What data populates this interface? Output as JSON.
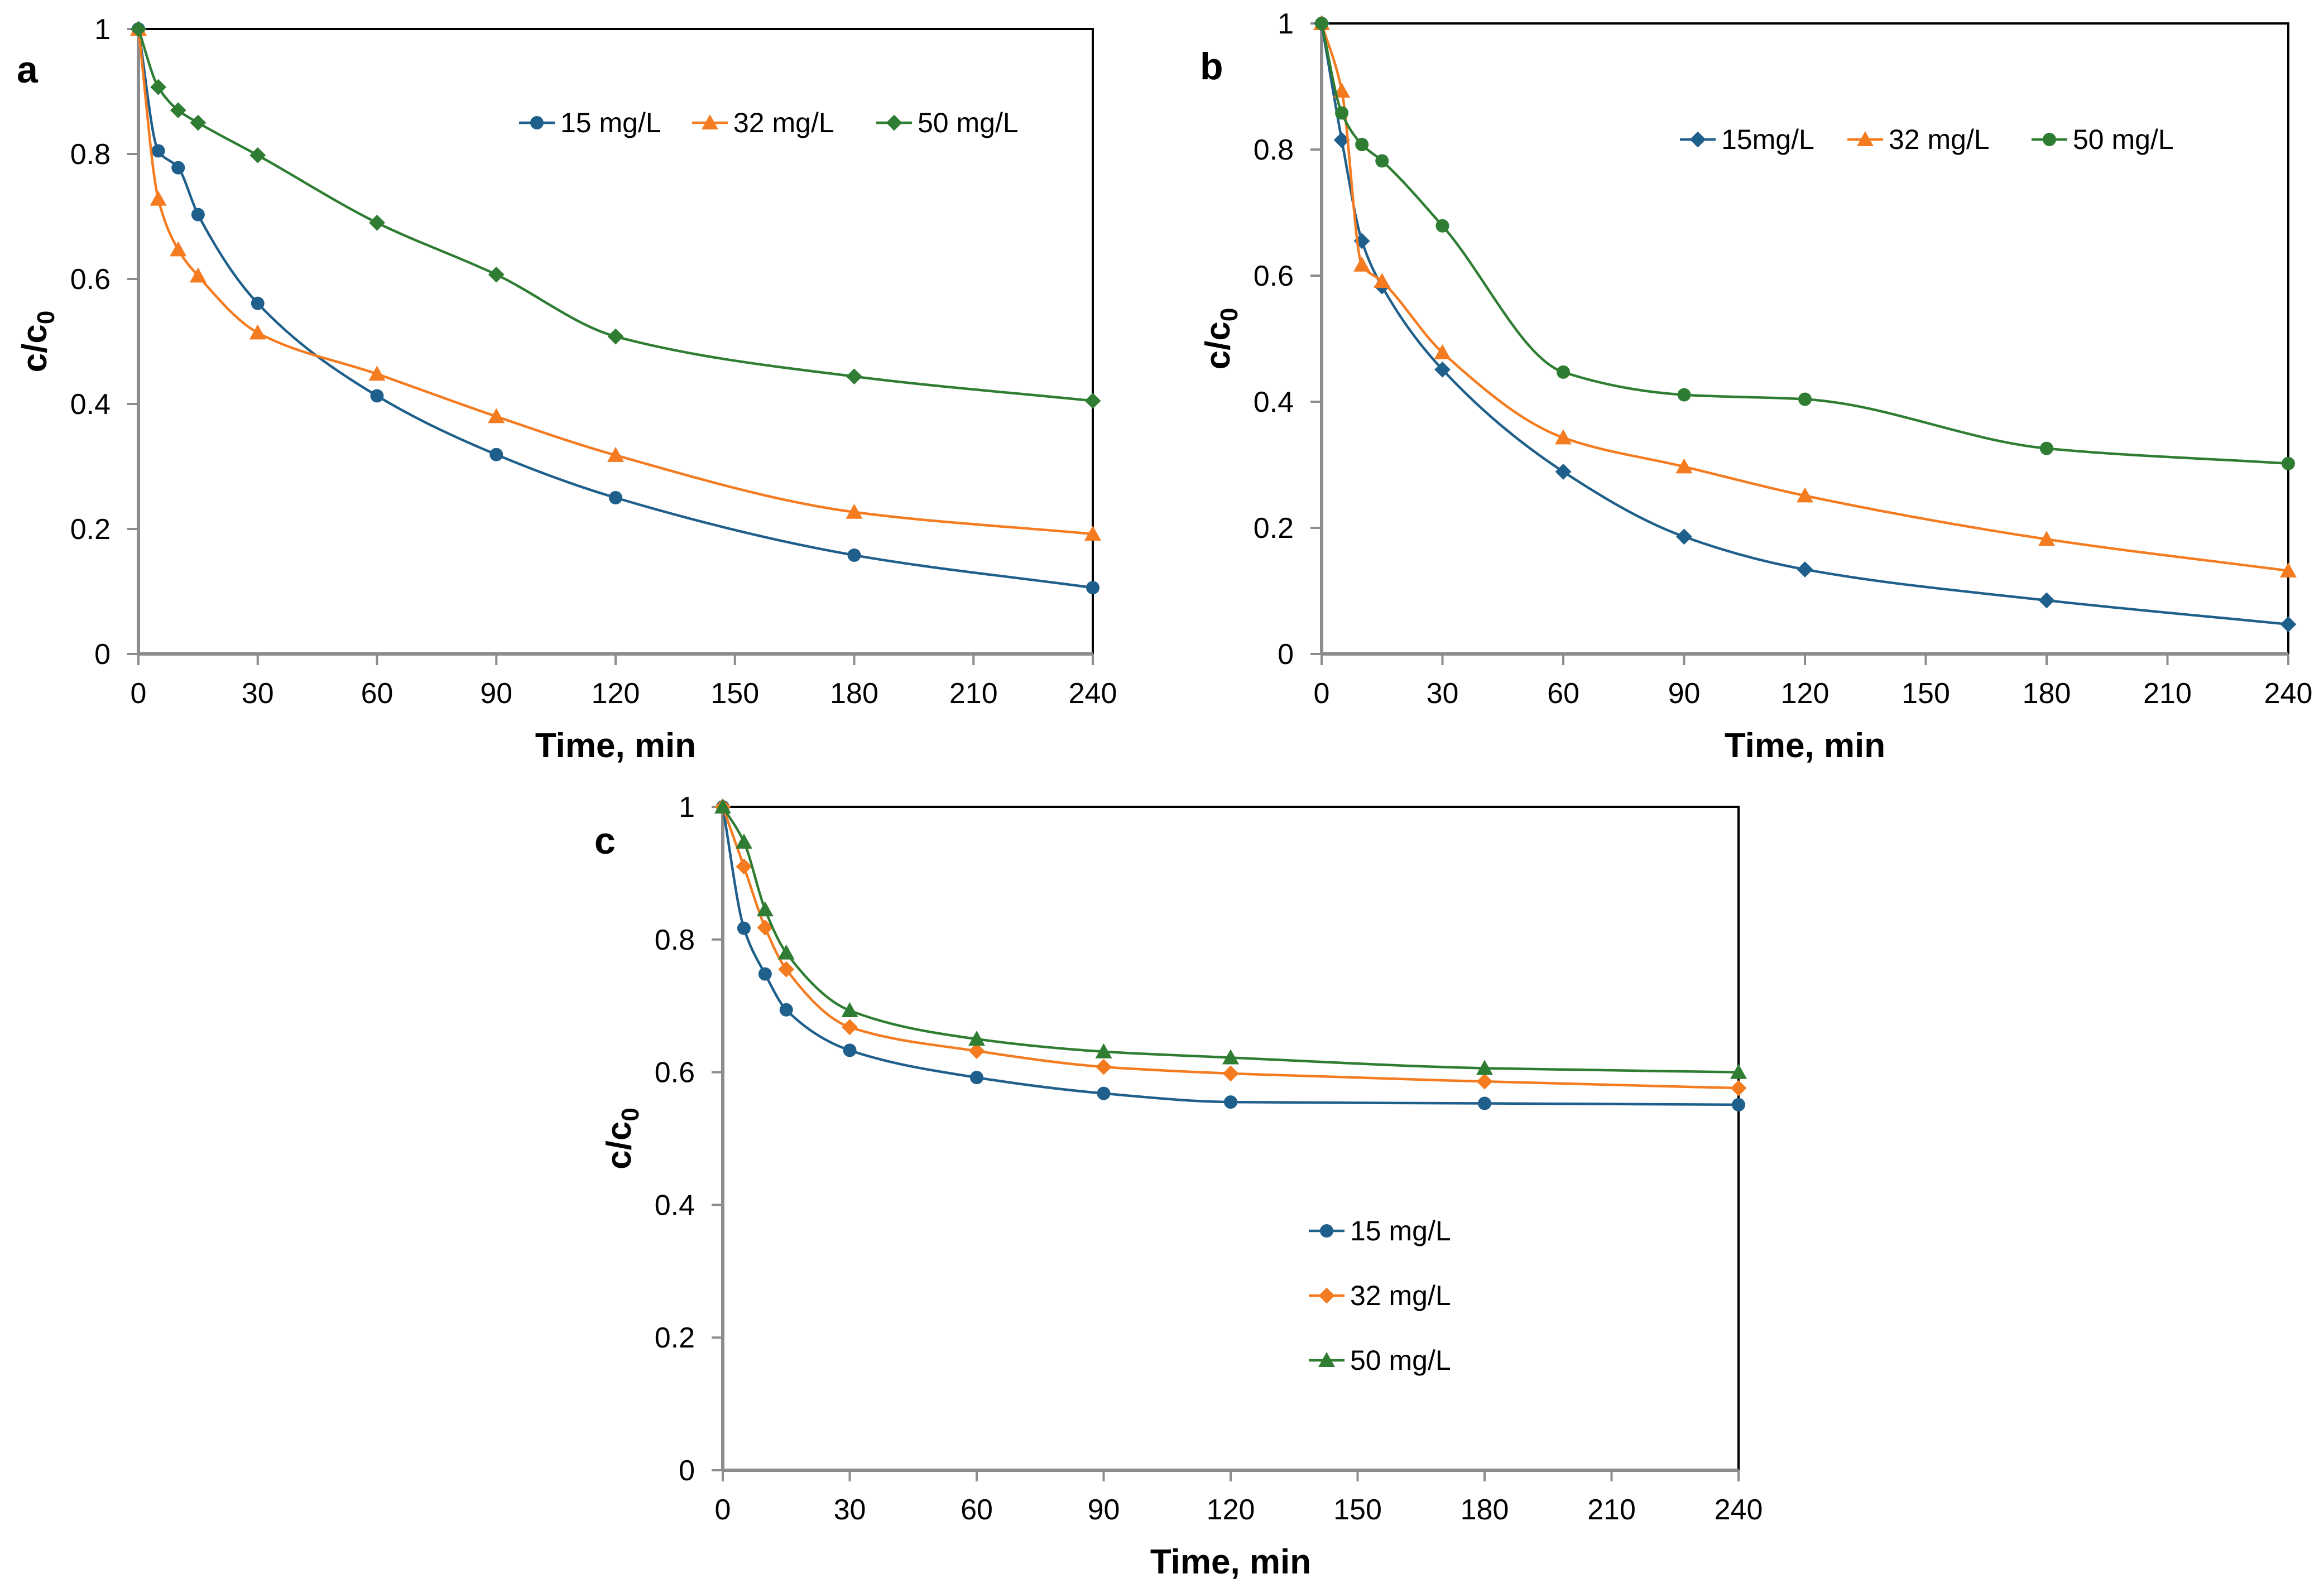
{
  "figure": {
    "description_labels": [
      "a",
      "b",
      "c"
    ]
  },
  "chart_data": [
    {
      "type": "line",
      "panel": "a",
      "xlabel": "Time, min",
      "ylabel": "c/c",
      "ylabel_sub": "0",
      "xlim": [
        0,
        240
      ],
      "ylim": [
        0,
        1
      ],
      "xticks": [
        0,
        30,
        60,
        90,
        120,
        150,
        180,
        210,
        240
      ],
      "yticks": [
        0,
        0.2,
        0.4,
        0.6,
        0.8,
        1
      ],
      "ytick_labels": [
        "0",
        "0.2",
        "0.4",
        "0.6",
        "0.8",
        "1"
      ],
      "legend_position": "top-right",
      "legend_layout": "row",
      "x": [
        0,
        5,
        10,
        15,
        30,
        60,
        90,
        120,
        180,
        240
      ],
      "series": [
        {
          "name": "15 mg/L",
          "color": "#1f5f8b",
          "marker": "circle",
          "values": [
            1,
            0.805,
            0.778,
            0.703,
            0.561,
            0.413,
            0.319,
            0.25,
            0.158,
            0.106
          ]
        },
        {
          "name": "32 mg/L",
          "color": "#f47b20",
          "marker": "triangle",
          "values": [
            1,
            0.728,
            0.647,
            0.605,
            0.514,
            0.448,
            0.38,
            0.318,
            0.227,
            0.192
          ]
        },
        {
          "name": "50 mg/L",
          "color": "#2e7d32",
          "marker": "diamond",
          "values": [
            1,
            0.907,
            0.87,
            0.85,
            0.798,
            0.69,
            0.607,
            0.508,
            0.444,
            0.405
          ]
        }
      ]
    },
    {
      "type": "line",
      "panel": "b",
      "xlabel": "Time, min",
      "ylabel": "c/c",
      "ylabel_sub": "0",
      "xlim": [
        0,
        240
      ],
      "ylim": [
        0,
        1
      ],
      "xticks": [
        0,
        30,
        60,
        90,
        120,
        150,
        180,
        210,
        240
      ],
      "yticks": [
        0,
        0.2,
        0.4,
        0.6,
        0.8,
        1
      ],
      "ytick_labels": [
        "0",
        "0.2",
        "0.4",
        "0.6",
        "0.8",
        "1"
      ],
      "legend_position": "top-right",
      "legend_layout": "row",
      "x": [
        0,
        5,
        10,
        15,
        30,
        60,
        90,
        120,
        180,
        240
      ],
      "series": [
        {
          "name": "15mg/L",
          "color": "#1f5f8b",
          "marker": "diamond",
          "values": [
            1,
            0.815,
            0.655,
            0.583,
            0.451,
            0.289,
            0.186,
            0.134,
            0.085,
            0.047
          ]
        },
        {
          "name": "32 mg/L",
          "color": "#f47b20",
          "marker": "triangle",
          "values": [
            1,
            0.893,
            0.617,
            0.591,
            0.478,
            0.343,
            0.297,
            0.251,
            0.182,
            0.132
          ]
        },
        {
          "name": "50 mg/L",
          "color": "#2e7d32",
          "marker": "circle",
          "values": [
            1,
            0.858,
            0.808,
            0.782,
            0.679,
            0.447,
            0.411,
            0.404,
            0.326,
            0.302
          ]
        }
      ]
    },
    {
      "type": "line",
      "panel": "c",
      "xlabel": "Time, min",
      "ylabel": "c/c",
      "ylabel_sub": "0",
      "xlim": [
        0,
        240
      ],
      "ylim": [
        0,
        1
      ],
      "xticks": [
        0,
        30,
        60,
        90,
        120,
        150,
        180,
        210,
        240
      ],
      "yticks": [
        0,
        0.2,
        0.4,
        0.6,
        0.8,
        1
      ],
      "ytick_labels": [
        "0",
        "0.2",
        "0.4",
        "0.6",
        "0.8",
        "1"
      ],
      "legend_position": "center",
      "legend_layout": "column",
      "x": [
        0,
        5,
        10,
        15,
        30,
        60,
        90,
        120,
        180,
        240
      ],
      "series": [
        {
          "name": "15 mg/L",
          "color": "#1f5f8b",
          "marker": "circle",
          "values": [
            1,
            0.817,
            0.748,
            0.694,
            0.633,
            0.592,
            0.568,
            0.555,
            0.553,
            0.551
          ]
        },
        {
          "name": "32 mg/L",
          "color": "#f47b20",
          "marker": "diamond",
          "values": [
            1,
            0.91,
            0.818,
            0.755,
            0.668,
            0.632,
            0.608,
            0.598,
            0.586,
            0.576
          ]
        },
        {
          "name": "50 mg/L",
          "color": "#2e7d32",
          "marker": "triangle",
          "values": [
            1,
            0.947,
            0.845,
            0.78,
            0.693,
            0.65,
            0.631,
            0.622,
            0.606,
            0.6
          ]
        }
      ]
    }
  ]
}
